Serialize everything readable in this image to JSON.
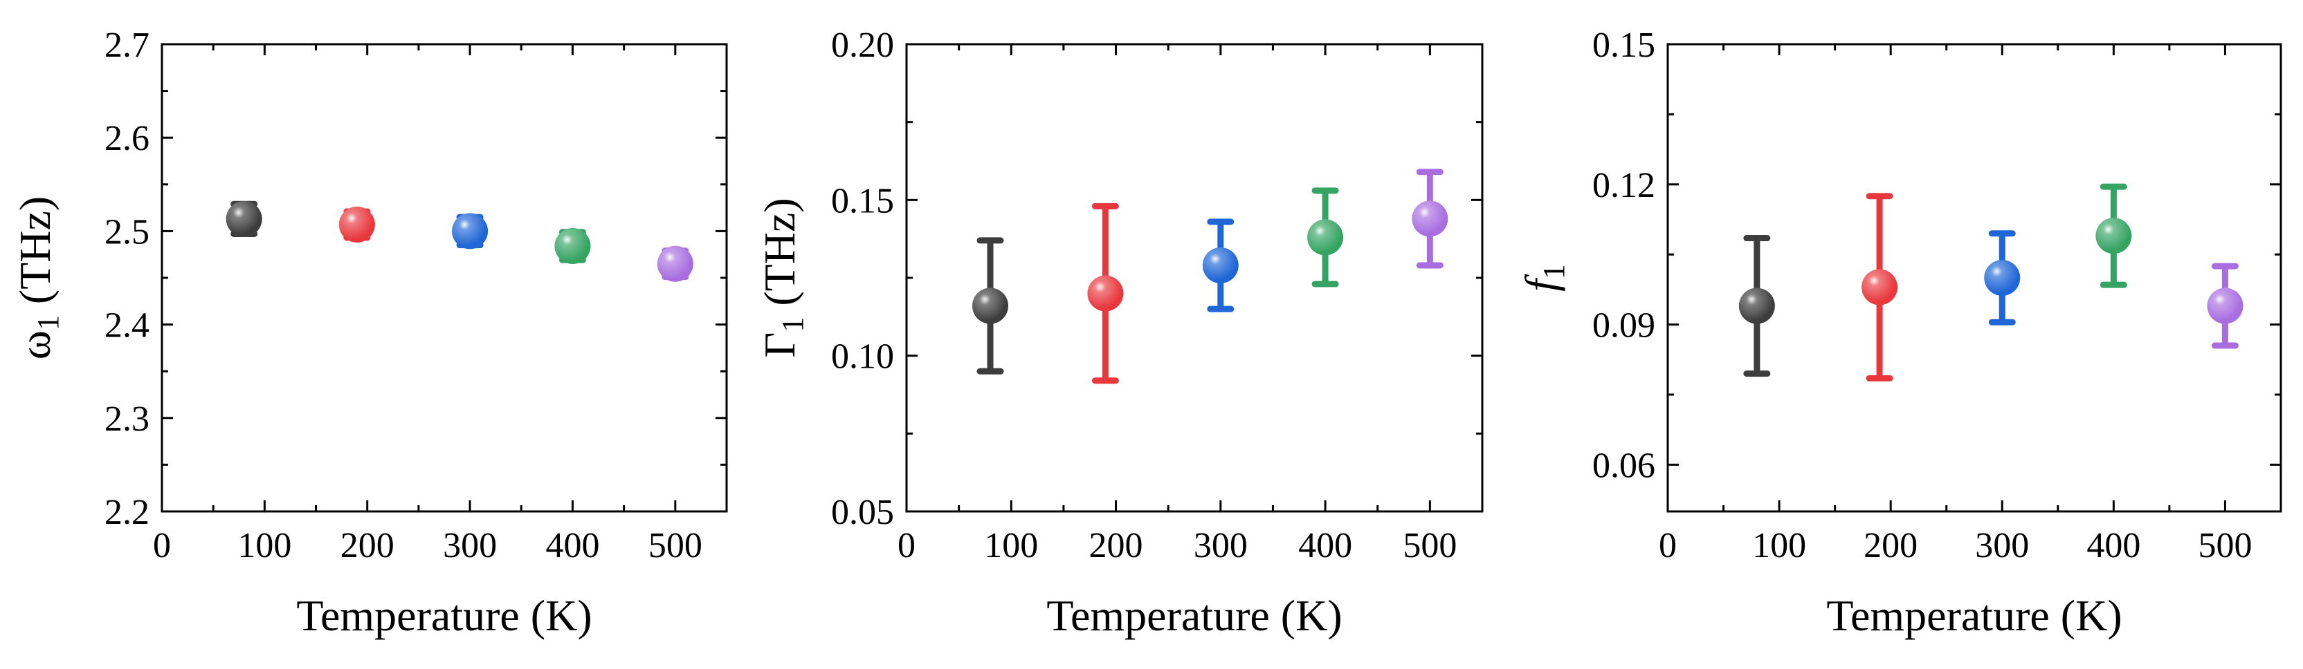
{
  "chart_data": [
    {
      "type": "scatter",
      "id": "omega",
      "xlabel": "Temperature (K)",
      "ylabel": {
        "symbol": "ω",
        "sub": "1",
        "unit": " (THz)",
        "italic": false
      },
      "xlim": [
        0,
        550
      ],
      "ylim": [
        2.2,
        2.7
      ],
      "xticks": [
        0,
        100,
        200,
        300,
        400,
        500
      ],
      "xtick_labels": [
        "0",
        "100",
        "200",
        "300",
        "400",
        "500"
      ],
      "yticks": [
        2.2,
        2.3,
        2.4,
        2.5,
        2.6,
        2.7
      ],
      "ytick_labels": [
        "2.2",
        "2.3",
        "2.4",
        "2.5",
        "2.6",
        "2.7"
      ],
      "points": [
        {
          "x": 80,
          "y": 2.513,
          "err": 0.016,
          "color": "#3d3d3d"
        },
        {
          "x": 190,
          "y": 2.507,
          "err": 0.014,
          "color": "#e8383d"
        },
        {
          "x": 300,
          "y": 2.5,
          "err": 0.015,
          "color": "#1f66d6"
        },
        {
          "x": 400,
          "y": 2.484,
          "err": 0.015,
          "color": "#35a463"
        },
        {
          "x": 500,
          "y": 2.465,
          "err": 0.014,
          "color": "#a86ee0"
        }
      ]
    },
    {
      "type": "scatter",
      "id": "gamma",
      "xlabel": "Temperature (K)",
      "ylabel": {
        "symbol": "Γ",
        "sub": "1",
        "unit": " (THz)",
        "italic": false
      },
      "xlim": [
        0,
        550
      ],
      "ylim": [
        0.05,
        0.2
      ],
      "xticks": [
        0,
        100,
        200,
        300,
        400,
        500
      ],
      "xtick_labels": [
        "0",
        "100",
        "200",
        "300",
        "400",
        "500"
      ],
      "yticks": [
        0.05,
        0.1,
        0.15,
        0.2
      ],
      "ytick_labels": [
        "0.05",
        "0.10",
        "0.15",
        "0.20"
      ],
      "points": [
        {
          "x": 80,
          "y": 0.116,
          "err": 0.021,
          "color": "#3d3d3d"
        },
        {
          "x": 190,
          "y": 0.12,
          "err": 0.028,
          "color": "#e8383d"
        },
        {
          "x": 300,
          "y": 0.129,
          "err": 0.014,
          "color": "#1f66d6"
        },
        {
          "x": 400,
          "y": 0.138,
          "err": 0.015,
          "color": "#35a463"
        },
        {
          "x": 500,
          "y": 0.144,
          "err": 0.015,
          "color": "#a86ee0"
        }
      ]
    },
    {
      "type": "scatter",
      "id": "f",
      "xlabel": "Temperature (K)",
      "ylabel": {
        "symbol": "f",
        "sub": "1",
        "unit": "",
        "italic": true
      },
      "xlim": [
        0,
        550
      ],
      "ylim": [
        0.05,
        0.15
      ],
      "xticks": [
        0,
        100,
        200,
        300,
        400,
        500
      ],
      "xtick_labels": [
        "0",
        "100",
        "200",
        "300",
        "400",
        "500"
      ],
      "yticks": [
        0.06,
        0.09,
        0.12,
        0.15
      ],
      "ytick_labels": [
        "0.06",
        "0.09",
        "0.12",
        "0.15"
      ],
      "points": [
        {
          "x": 80,
          "y": 0.094,
          "err": 0.0145,
          "color": "#3d3d3d"
        },
        {
          "x": 190,
          "y": 0.098,
          "err": 0.0195,
          "color": "#e8383d"
        },
        {
          "x": 300,
          "y": 0.1,
          "err": 0.0095,
          "color": "#1f66d6"
        },
        {
          "x": 400,
          "y": 0.109,
          "err": 0.0105,
          "color": "#35a463"
        },
        {
          "x": 500,
          "y": 0.094,
          "err": 0.0085,
          "color": "#a86ee0"
        }
      ]
    }
  ]
}
